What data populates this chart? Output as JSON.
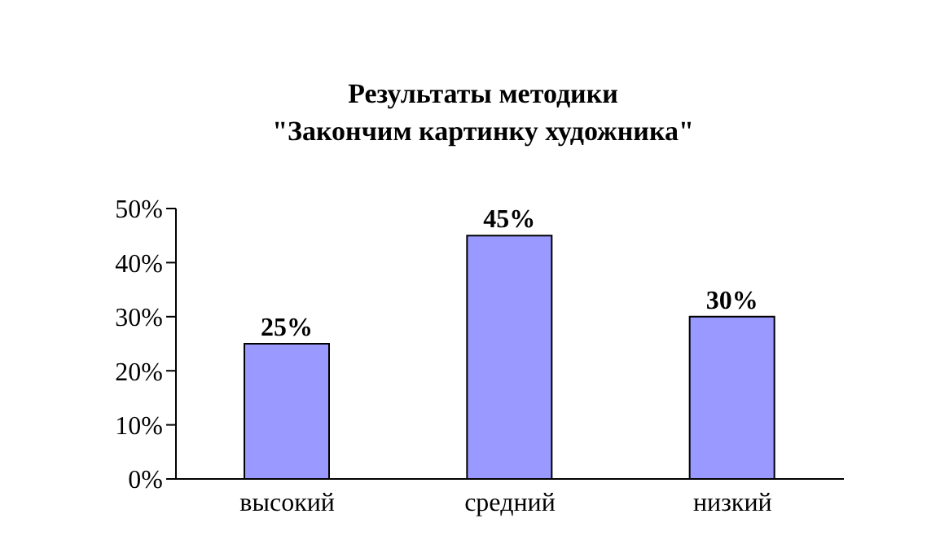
{
  "chart_data": {
    "type": "bar",
    "title": "Результаты методики\n\"Закончим картинку художника\"",
    "categories": [
      "высокий",
      "средний",
      "низкий"
    ],
    "values": [
      25,
      45,
      30
    ],
    "color": "#9999ff",
    "value_labels": [
      "25%",
      "45%",
      "30%"
    ],
    "ylim": [
      0,
      50
    ],
    "yticks": [
      {
        "value": 0,
        "label": "0%"
      },
      {
        "value": 10,
        "label": "10%"
      },
      {
        "value": 20,
        "label": "20%"
      },
      {
        "value": 30,
        "label": "30%"
      },
      {
        "value": 40,
        "label": "40%"
      },
      {
        "value": 50,
        "label": "50%"
      }
    ],
    "grid": false,
    "legend": false
  }
}
